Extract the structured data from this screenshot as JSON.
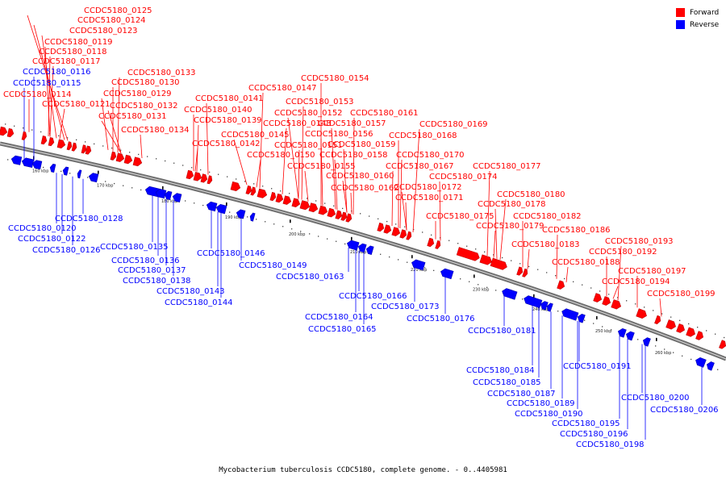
{
  "legend": {
    "forward_label": "Forward",
    "reverse_label": "Reverse",
    "forward_color": "#ff0000",
    "reverse_color": "#0000ff"
  },
  "caption": "Mycobacterium tuberculosis CCDC5180, complete genome. - 0..4405981",
  "scale_labels": [
    "160 kbp",
    "170 kbp",
    "180 kbp",
    "190 kbp",
    "200 kbp",
    "210 kbp",
    "220 kbp",
    "230 kbp",
    "240 kbp",
    "250 kbp",
    "260 kbp"
  ],
  "forward_genes": [
    "CCDC5180_0125",
    "CCDC5180_0124",
    "CCDC5180_0123",
    "CCDC5180_0119",
    "CCDC5180_0118",
    "CCDC5180_0117",
    "CCDC5180_0114",
    "CCDC5180_0121",
    "CCDC5180_0133",
    "CCDC5180_0130",
    "CCDC5180_0129",
    "CCDC5180_0132",
    "CCDC5180_0131",
    "CCDC5180_0134",
    "CCDC5180_0154",
    "CCDC5180_0147",
    "CCDC5180_0141",
    "CCDC5180_0153",
    "CCDC5180_0140",
    "CCDC5180_0152",
    "CCDC5180_0161",
    "CCDC5180_0139",
    "CCDC5180_0148",
    "CCDC5180_0157",
    "CCDC5180_0169",
    "CCDC5180_0145",
    "CCDC5180_0151",
    "CCDC5180_0156",
    "CCDC5180_0168",
    "CCDC5180_0142",
    "CCDC5180_0159",
    "CCDC5180_0150",
    "CCDC5180_0158",
    "CCDC5180_0170",
    "CCDC5180_0155",
    "CCDC5180_0167",
    "CCDC5180_0177",
    "CCDC5180_0160",
    "CCDC5180_0174",
    "CCDC5180_0162",
    "CCDC5180_0172",
    "CCDC5180_0171",
    "CCDC5180_0180",
    "CCDC5180_0178",
    "CCDC5180_0175",
    "CCDC5180_0182",
    "CCDC5180_0179",
    "CCDC5180_0186",
    "CCDC5180_0183",
    "CCDC5180_0193",
    "CCDC5180_0192",
    "CCDC5180_0188",
    "CCDC5180_0197",
    "CCDC5180_0194",
    "CCDC5180_0199"
  ],
  "reverse_genes": [
    "CCDC5180_0116",
    "CCDC5180_0115",
    "CCDC5180_0120",
    "CCDC5180_0128",
    "CCDC5180_0122",
    "CCDC5180_0126",
    "CCDC5180_0135",
    "CCDC5180_0136",
    "CCDC5180_0137",
    "CCDC5180_0138",
    "CCDC5180_0146",
    "CCDC5180_0143",
    "CCDC5180_0149",
    "CCDC5180_0144",
    "CCDC5180_0163",
    "CCDC5180_0166",
    "CCDC5180_0173",
    "CCDC5180_0164",
    "CCDC5180_0176",
    "CCDC5180_0165",
    "CCDC5180_0181",
    "CCDC5180_0184",
    "CCDC5180_0191",
    "CCDC5180_0185",
    "CCDC5180_0187",
    "CCDC5180_0189",
    "CCDC5180_0190",
    "CCDC5180_0200",
    "CCDC5180_0206",
    "CCDC5180_0195",
    "CCDC5180_0196",
    "CCDC5180_0198"
  ]
}
